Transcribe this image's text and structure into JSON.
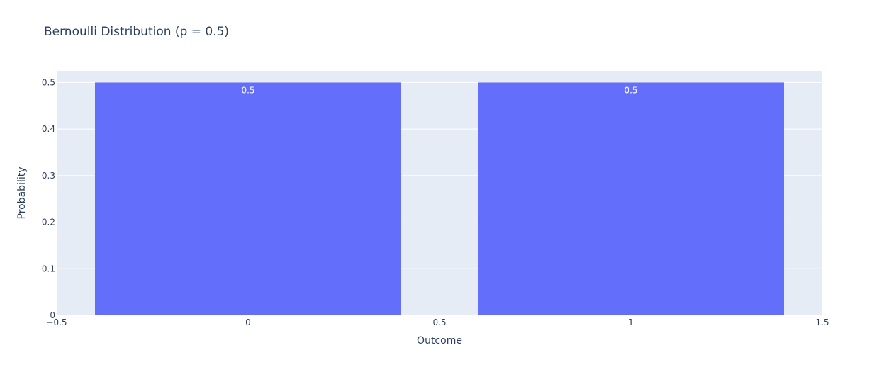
{
  "chart_data": {
    "type": "bar",
    "title": "Bernoulli Distribution (p = 0.5)",
    "xlabel": "Outcome",
    "ylabel": "Probability",
    "x": [
      0,
      1
    ],
    "values": [
      0.5,
      0.5
    ],
    "data_labels": [
      "0.5",
      "0.5"
    ],
    "bar_width": 0.8,
    "xlim": [
      -0.5,
      1.5
    ],
    "ylim": [
      0,
      0.525
    ],
    "x_ticks": [
      -0.5,
      0,
      0.5,
      1,
      1.5
    ],
    "x_tick_labels": [
      "−0.5",
      "0",
      "0.5",
      "1",
      "1.5"
    ],
    "y_ticks": [
      0,
      0.1,
      0.2,
      0.3,
      0.4,
      0.5
    ],
    "y_tick_labels": [
      "0",
      "0.1",
      "0.2",
      "0.3",
      "0.4",
      "0.5"
    ],
    "grid": true,
    "legend": "none",
    "colors": {
      "bar": "#636efa",
      "plot_background": "#e5ecf6",
      "grid": "#ffffff",
      "text": "#2a3f5f",
      "data_label": "#ffffff"
    }
  }
}
